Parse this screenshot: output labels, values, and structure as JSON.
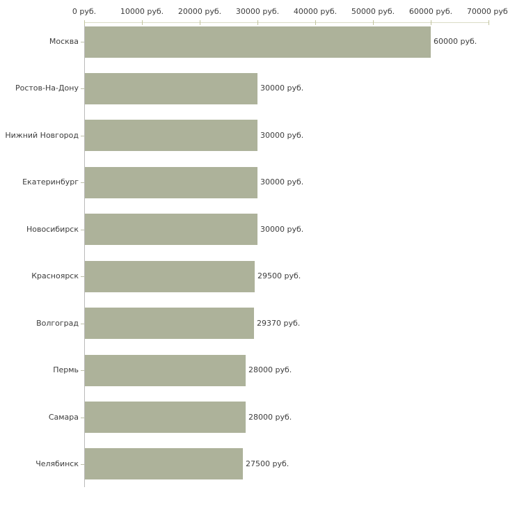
{
  "chart_data": {
    "type": "bar",
    "orientation": "horizontal",
    "title": "",
    "xlabel": "",
    "ylabel": "",
    "unit": "руб.",
    "categories": [
      "Москва",
      "Ростов-На-Дону",
      "Нижний Новгород",
      "Екатеринбург",
      "Новосибирск",
      "Красноярск",
      "Волгоград",
      "Пермь",
      "Самара",
      "Челябинск"
    ],
    "values": [
      60000,
      30000,
      30000,
      30000,
      30000,
      29500,
      29370,
      28000,
      28000,
      27500
    ],
    "value_labels": [
      "60000 руб.",
      "30000 руб.",
      "30000 руб.",
      "30000 руб.",
      "30000 руб.",
      "29500 руб.",
      "29370 руб.",
      "28000 руб.",
      "28000 руб.",
      "27500 руб."
    ],
    "x_axis": {
      "min": 0,
      "max": 70000,
      "step": 10000,
      "tick_labels": [
        "0 руб.",
        "10000 руб.",
        "20000 руб.",
        "30000 руб.",
        "40000 руб.",
        "50000 руб.",
        "60000 руб.",
        "70000 руб."
      ]
    },
    "grid": "off",
    "legend": "none",
    "colors": {
      "background": "#ffffff",
      "bar": "#adb29a",
      "axis_horizontal": "#dadbc5",
      "axis_vertical": "#b9b9b9",
      "x_tick": "#c2c49e",
      "y_tick": "#bcbfa8",
      "text": "#3c3c3c"
    }
  }
}
